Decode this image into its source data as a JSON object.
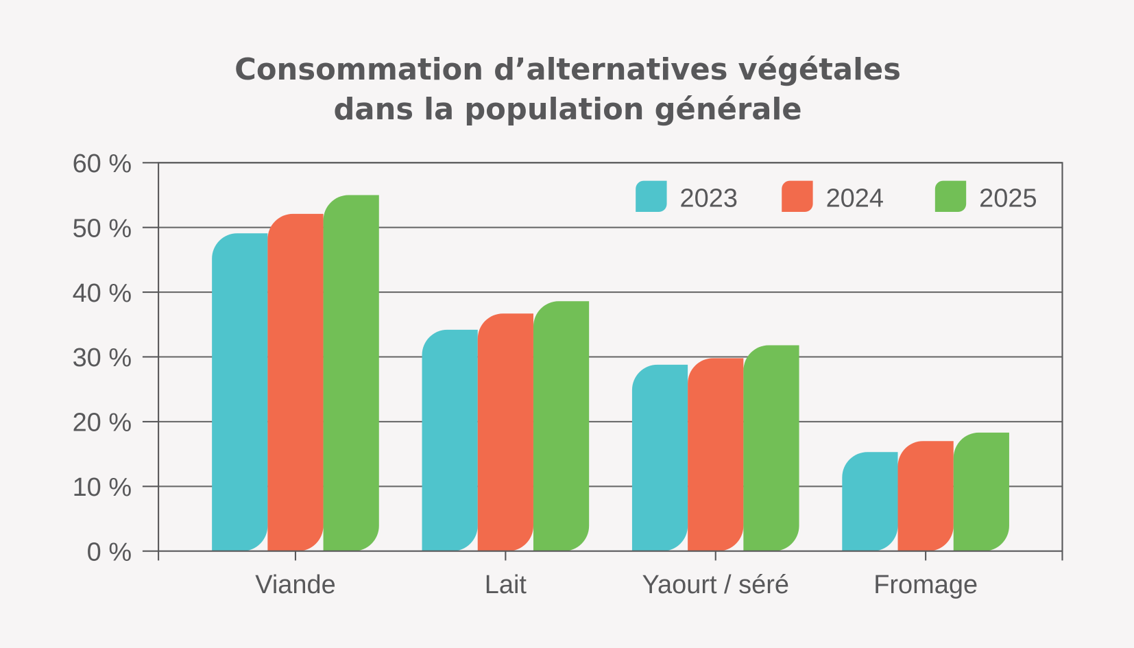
{
  "chart_data": {
    "type": "bar",
    "title": [
      "Consommation d’alternatives végétales",
      "dans la population générale"
    ],
    "xlabel": "",
    "ylabel": "",
    "categories": [
      "Viande",
      "Lait",
      "Yaourt / séré",
      "Fromage"
    ],
    "series": [
      {
        "name": "2023",
        "color": "#4fc4cc",
        "values": [
          49.1,
          34.2,
          28.8,
          15.3
        ]
      },
      {
        "name": "2024",
        "color": "#f26b4c",
        "values": [
          52.1,
          36.7,
          29.8,
          17.0
        ]
      },
      {
        "name": "2025",
        "color": "#72bf56",
        "values": [
          55.0,
          38.6,
          31.8,
          18.3
        ]
      }
    ],
    "ylim": [
      0,
      60
    ],
    "yticks": [
      0,
      10,
      20,
      30,
      40,
      50,
      60
    ],
    "ytick_labels": [
      "0 %",
      "10 %",
      "20 %",
      "30 %",
      "40 %",
      "50 %",
      "60 %"
    ],
    "grid": true,
    "legend_position": "top-right"
  }
}
